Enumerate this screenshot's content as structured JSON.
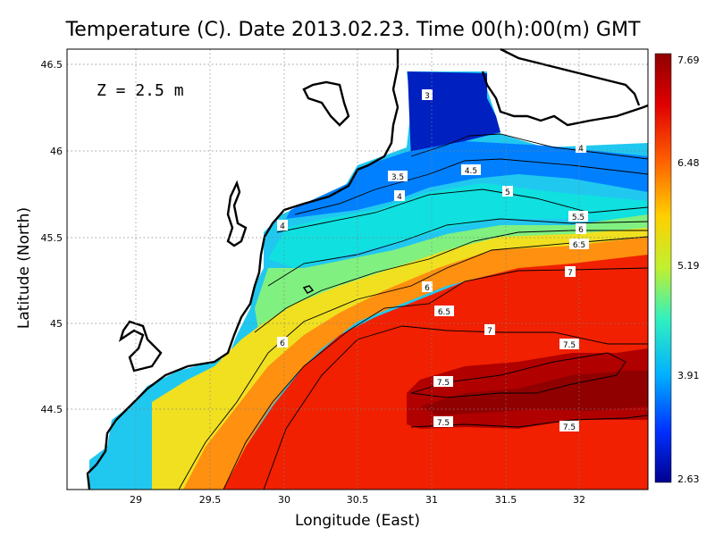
{
  "title": "Temperature (C). Date 2013.02.23. Time 00(h):00(m) GMT",
  "annotation": "Z = 2.5 m",
  "xlabel": "Longitude (East)",
  "ylabel": "Latitude (North)",
  "x_ticks": [
    "29",
    "29.5",
    "30",
    "30.5",
    "31",
    "31.5",
    "32"
  ],
  "y_ticks": [
    "46.5",
    "46",
    "45.5",
    "45",
    "44.5"
  ],
  "colorbar": {
    "ticks": [
      "7.69",
      "6.48",
      "5.19",
      "3.91",
      "2.63"
    ],
    "colors": [
      "#00008f",
      "#0030ff",
      "#00b0ff",
      "#30f0c0",
      "#c0f030",
      "#ffd000",
      "#ff6000",
      "#e00000",
      "#8f0000"
    ]
  },
  "contour_labels": [
    "3",
    "3.5",
    "4",
    "4.5",
    "5",
    "5.5",
    "6",
    "6.5",
    "7",
    "7.5",
    "4",
    "4",
    "6",
    "6",
    "6.5",
    "7",
    "7.5",
    "7.5",
    "7.5"
  ]
}
